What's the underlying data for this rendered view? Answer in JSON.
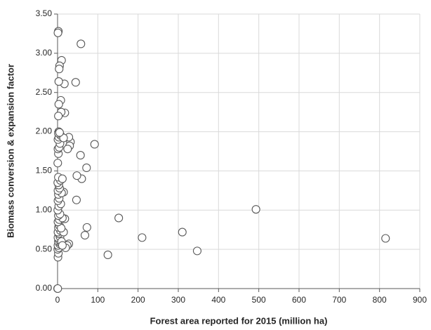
{
  "chart_data": {
    "type": "scatter",
    "x_label": "Forest area reported for 2015 (million ha)",
    "y_label": "Biomass conversion & expansion factor",
    "x": [
      815,
      493,
      347,
      310,
      210,
      152,
      125,
      92,
      73,
      72,
      68,
      58,
      57,
      60,
      48,
      47,
      45,
      32,
      28,
      30,
      25,
      28,
      24,
      20,
      18,
      17,
      15,
      18,
      10,
      9,
      8,
      5,
      4,
      3,
      2,
      1,
      3,
      2,
      3,
      0,
      0.5,
      1,
      2,
      0.5,
      3,
      1,
      5,
      2,
      8,
      4,
      1,
      6,
      10,
      12,
      3,
      1,
      7,
      15,
      2,
      5,
      9,
      1,
      4,
      12,
      2,
      6,
      0.5,
      3,
      8,
      1,
      4,
      2,
      10,
      1,
      5,
      3,
      0.5,
      7,
      2,
      12,
      0.5,
      2,
      1,
      4,
      6,
      1,
      3,
      8,
      15,
      2,
      5
    ],
    "values": [
      0.64,
      1.01,
      0.48,
      0.72,
      0.65,
      0.9,
      0.43,
      1.84,
      0.78,
      1.54,
      0.68,
      3.12,
      1.7,
      1.4,
      1.44,
      1.13,
      2.63,
      1.87,
      1.93,
      1.82,
      1.78,
      0.57,
      0.55,
      0.52,
      2.24,
      2.61,
      1.23,
      0.89,
      2.91,
      2.25,
      2.4,
      2.84,
      2.8,
      2.64,
      3.28,
      3.26,
      2.35,
      2.2,
      2.0,
      0,
      0,
      0.4,
      0.45,
      0.5,
      0.52,
      0.55,
      0.57,
      0.6,
      0.58,
      0.62,
      0.65,
      0.66,
      0.6,
      0.55,
      0.7,
      0.72,
      0.74,
      0.72,
      0.78,
      0.8,
      0.77,
      0.85,
      0.88,
      0.9,
      0.93,
      0.95,
      1.0,
      1.05,
      1.08,
      1.12,
      1.15,
      1.2,
      1.22,
      1.25,
      1.28,
      1.32,
      1.35,
      1.38,
      1.42,
      1.4,
      1.6,
      1.72,
      1.78,
      1.8,
      1.85,
      1.9,
      1.93,
      1.95,
      1.92,
      1.98,
      1.99
    ],
    "color": "#595959",
    "xlim": [
      0,
      900
    ],
    "xticks": [
      0,
      100,
      200,
      300,
      400,
      500,
      600,
      700,
      800,
      900
    ],
    "ylim": [
      0,
      3.5
    ],
    "yticks": [
      {
        "value": 0,
        "label": "0.00"
      },
      {
        "value": 0.5,
        "label": "0.50"
      },
      {
        "value": 1,
        "label": "1.00"
      },
      {
        "value": 1.5,
        "label": "1.50"
      },
      {
        "value": 2,
        "label": "2.00"
      },
      {
        "value": 2.5,
        "label": "2.50"
      },
      {
        "value": 3,
        "label": "3.00"
      },
      {
        "value": 3.5,
        "label": "3.50"
      }
    ],
    "grid": true
  }
}
